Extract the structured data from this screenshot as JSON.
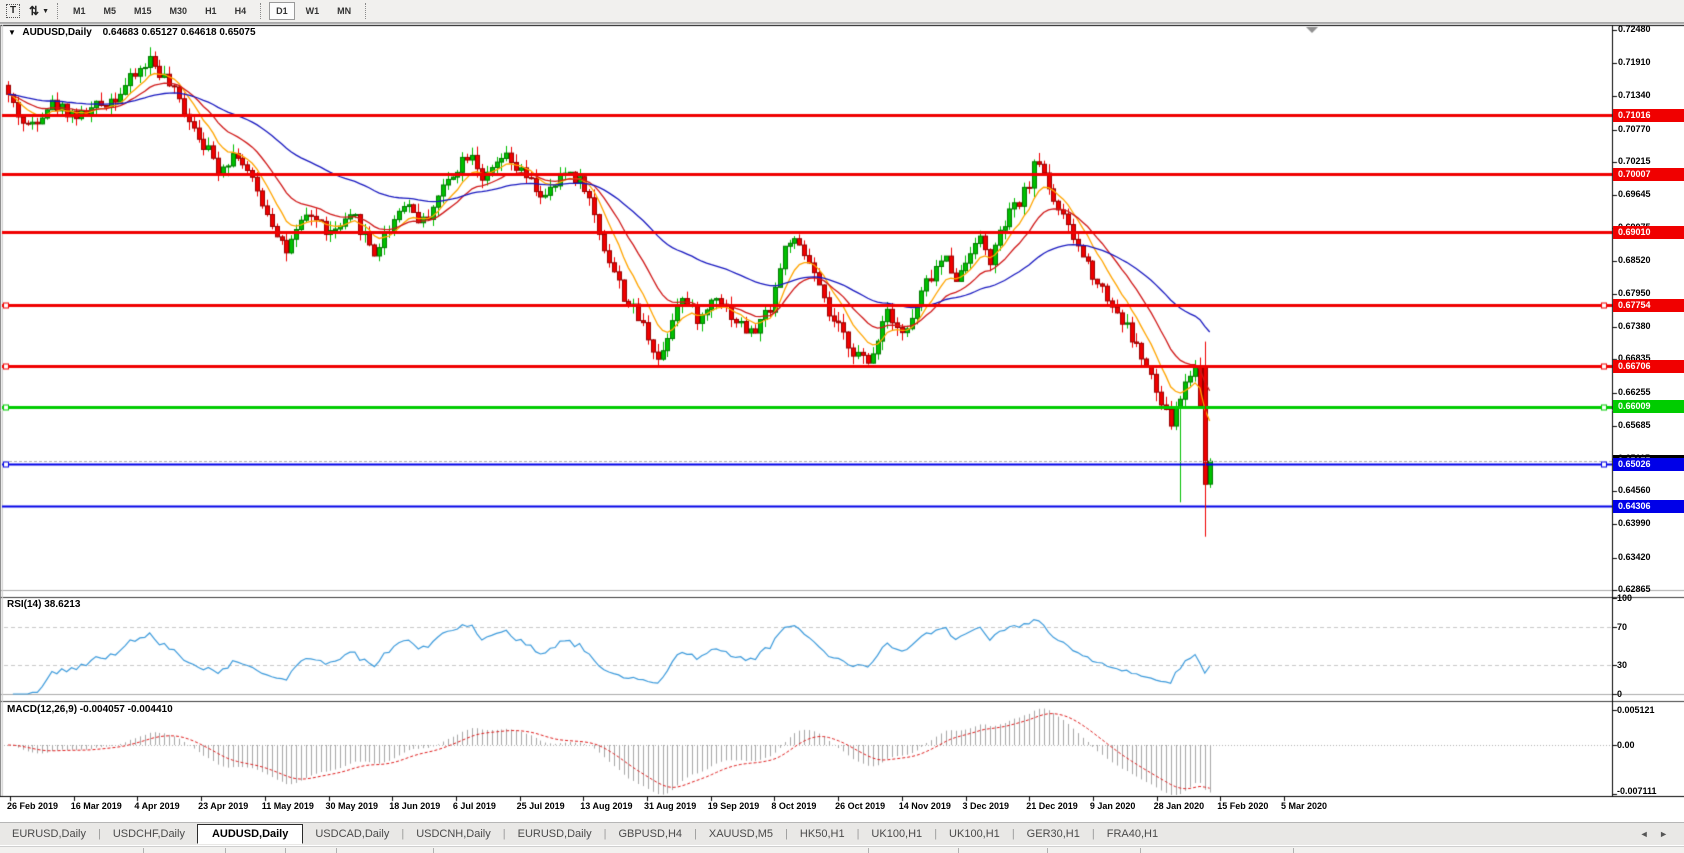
{
  "toolbar": {
    "text_tool_label": "T",
    "timeframes": [
      "M1",
      "M5",
      "M15",
      "M30",
      "H1",
      "H4",
      "D1",
      "W1",
      "MN"
    ],
    "active_timeframe": "D1"
  },
  "window": {
    "title_symbol": "AUDUSD,Daily",
    "title_ohlc": "0.64683 0.65127 0.64618 0.65075"
  },
  "price_axis": {
    "top_price": 0.7248,
    "bottom_price": 0.62865,
    "ticks": [
      "0.72480",
      "0.71910",
      "0.71340",
      "0.70770",
      "0.70215",
      "0.69645",
      "0.69075",
      "0.68520",
      "0.67950",
      "0.67380",
      "0.66835",
      "0.66255",
      "0.65685",
      "0.65115",
      "0.64560",
      "0.63990",
      "0.63420",
      "0.62865"
    ]
  },
  "price_lines": [
    {
      "price": 0.71016,
      "label": "0.71016",
      "color": "#f00000",
      "badge": "#f00000",
      "width": 3
    },
    {
      "price": 0.70007,
      "label": "0.70007",
      "color": "#f00000",
      "badge": "#f00000",
      "width": 3
    },
    {
      "price": 0.6901,
      "label": "0.69010",
      "color": "#f00000",
      "badge": "#f00000",
      "width": 3
    },
    {
      "price": 0.67754,
      "label": "0.67754",
      "color": "#f00000",
      "badge": "#f00000",
      "width": 3,
      "handles": true
    },
    {
      "price": 0.66706,
      "label": "0.66706",
      "color": "#f00000",
      "badge": "#f00000",
      "width": 3,
      "handles": true
    },
    {
      "price": 0.66009,
      "label": "0.66009",
      "color": "#00cc00",
      "badge": "#00cc00",
      "width": 3,
      "handles": true
    },
    {
      "price": 0.65026,
      "label": "0.65026",
      "color": "#0000e8",
      "badge": "#0000e8",
      "width": 2,
      "handles": true
    },
    {
      "price": 0.64306,
      "label": "0.64306",
      "color": "#0000e8",
      "badge": "#0000e8",
      "width": 2
    }
  ],
  "bid": {
    "price": 0.65075,
    "label": "0.65075",
    "badge": "#000000",
    "line_color": "#b4b4b4"
  },
  "vline": {
    "bar": 245,
    "price_top": 0.6713,
    "price_bottom": 0.6378,
    "color": "#f00000"
  },
  "date_axis": [
    "26 Feb 2019",
    "16 Mar 2019",
    "4 Apr 2019",
    "23 Apr 2019",
    "11 May 2019",
    "30 May 2019",
    "18 Jun 2019",
    "6 Jul 2019",
    "25 Jul 2019",
    "13 Aug 2019",
    "31 Aug 2019",
    "19 Sep 2019",
    "8 Oct 2019",
    "26 Oct 2019",
    "14 Nov 2019",
    "3 Dec 2019",
    "21 Dec 2019",
    "9 Jan 2020",
    "28 Jan 2020",
    "15 Feb 2020",
    "5 Mar 2020"
  ],
  "rsi_panel": {
    "label": "RSI(14) 38.6213",
    "period": 14,
    "value": 38.6213,
    "scale": [
      "100",
      "70",
      "30",
      "0"
    ],
    "scale_values": [
      100,
      70,
      30,
      0
    ],
    "upper_level": 70,
    "lower_level": 30,
    "color": "#3d9bdc"
  },
  "macd_panel": {
    "label": "MACD(12,26,9) -0.004057 -0.004410",
    "fast": 12,
    "slow": 26,
    "signal": 9,
    "main_value": -0.004057,
    "signal_value": -0.00441,
    "scale": [
      "0.005121",
      "0.00",
      "-0.007111"
    ],
    "scale_values": [
      0.005121,
      0,
      -0.007111
    ],
    "hist_color": "#a8a8a8",
    "signal_color": "#e02020"
  },
  "tabs": {
    "items": [
      "EURUSD,Daily",
      "USDCHF,Daily",
      "AUDUSD,Daily",
      "USDCAD,Daily",
      "USDCNH,Daily",
      "EURUSD,Daily",
      "GBPUSD,H4",
      "XAUUSD,M5",
      "HK50,H1",
      "UK100,H1",
      "UK100,H1",
      "GER30,H1",
      "FRA40,H1"
    ],
    "active_index": 2,
    "scroll_arrows": "◄ ►"
  },
  "chart_data": {
    "type": "candlestick",
    "symbol": "AUDUSD",
    "timeframe": "Daily",
    "bars": 247,
    "seed": 42,
    "noise": 0.0024,
    "wick": 0.0016,
    "last_bar": {
      "open": 0.64683,
      "high": 0.65127,
      "low": 0.64618,
      "close": 0.65075
    },
    "bull_color": "#00c000",
    "bear_color": "#f00000",
    "anchors": [
      [
        0.0,
        0.7135
      ],
      [
        0.015,
        0.7078
      ],
      [
        0.035,
        0.7122
      ],
      [
        0.06,
        0.71
      ],
      [
        0.09,
        0.7135
      ],
      [
        0.118,
        0.7198
      ],
      [
        0.132,
        0.716
      ],
      [
        0.155,
        0.7082
      ],
      [
        0.175,
        0.701
      ],
      [
        0.19,
        0.704
      ],
      [
        0.21,
        0.6958
      ],
      [
        0.232,
        0.6867
      ],
      [
        0.25,
        0.6935
      ],
      [
        0.268,
        0.6897
      ],
      [
        0.288,
        0.6925
      ],
      [
        0.305,
        0.6865
      ],
      [
        0.33,
        0.6956
      ],
      [
        0.345,
        0.6916
      ],
      [
        0.368,
        0.6998
      ],
      [
        0.385,
        0.7044
      ],
      [
        0.396,
        0.6987
      ],
      [
        0.412,
        0.703
      ],
      [
        0.428,
        0.7
      ],
      [
        0.447,
        0.6958
      ],
      [
        0.465,
        0.7008
      ],
      [
        0.48,
        0.698
      ],
      [
        0.495,
        0.688
      ],
      [
        0.512,
        0.6792
      ],
      [
        0.53,
        0.6735
      ],
      [
        0.542,
        0.6678
      ],
      [
        0.558,
        0.6793
      ],
      [
        0.576,
        0.6748
      ],
      [
        0.589,
        0.6798
      ],
      [
        0.604,
        0.6752
      ],
      [
        0.619,
        0.6724
      ],
      [
        0.634,
        0.6773
      ],
      [
        0.649,
        0.6893
      ],
      [
        0.667,
        0.6848
      ],
      [
        0.682,
        0.676
      ],
      [
        0.702,
        0.6702
      ],
      [
        0.716,
        0.6671
      ],
      [
        0.731,
        0.6773
      ],
      [
        0.746,
        0.6722
      ],
      [
        0.764,
        0.6812
      ],
      [
        0.779,
        0.6858
      ],
      [
        0.791,
        0.682
      ],
      [
        0.806,
        0.6898
      ],
      [
        0.817,
        0.6852
      ],
      [
        0.832,
        0.6928
      ],
      [
        0.844,
        0.6958
      ],
      [
        0.857,
        0.7028
      ],
      [
        0.87,
        0.6958
      ],
      [
        0.882,
        0.6905
      ],
      [
        0.895,
        0.6858
      ],
      [
        0.908,
        0.6812
      ],
      [
        0.919,
        0.6775
      ],
      [
        0.93,
        0.674
      ],
      [
        0.94,
        0.67
      ],
      [
        0.95,
        0.6655
      ],
      [
        0.959,
        0.6605
      ],
      [
        0.967,
        0.6572
      ],
      [
        0.975,
        0.6615
      ],
      [
        0.983,
        0.6658
      ],
      [
        0.989,
        0.6672
      ],
      [
        0.994,
        0.6555
      ],
      [
        1.0,
        0.6508
      ]
    ],
    "overrides": [
      {
        "bar": 240,
        "low": 0.6437
      },
      {
        "bar": 245,
        "open": 0.667,
        "high": 0.6678,
        "low": 0.6455,
        "close": 0.6468
      },
      {
        "bar": 246,
        "open": 0.64683,
        "high": 0.65127,
        "low": 0.64618,
        "close": 0.65075
      }
    ],
    "moving_averages": [
      {
        "period": 8,
        "color": "#ffa500"
      },
      {
        "period": 17,
        "color": "#d01818"
      },
      {
        "period": 48,
        "color": "#1818c0"
      }
    ],
    "support_resistance": [
      0.71016,
      0.70007,
      0.6901,
      0.67754,
      0.66706,
      0.66009,
      0.65026,
      0.64306
    ]
  },
  "status_separators": [
    143,
    225,
    285,
    336,
    433,
    868,
    958,
    1047,
    1140,
    1293
  ]
}
